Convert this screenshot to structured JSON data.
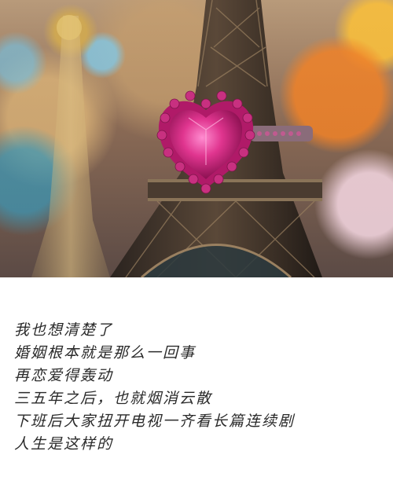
{
  "poem": {
    "lines": [
      "我也想清楚了",
      "婚姻根本就是那么一回事",
      "再恋爱得轰动",
      "三五年之后，也就烟消云散",
      "下班后大家扭开电视一齐看长篇连续剧",
      "人生是这样的"
    ]
  },
  "colors": {
    "gem": "#e0358f",
    "tower": "#3a3029",
    "background": "#ffffff",
    "text": "#2a2a2a"
  }
}
